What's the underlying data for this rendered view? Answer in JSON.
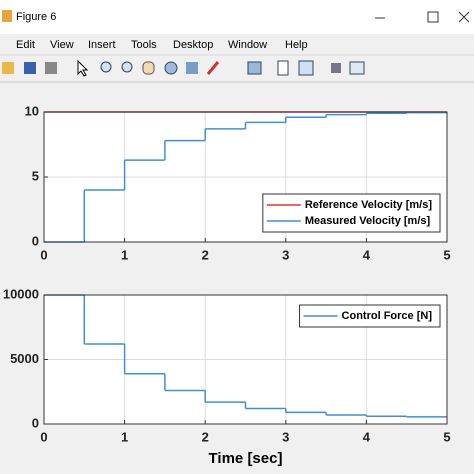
{
  "window": {
    "title": "Figure 6",
    "menu": [
      "Edit",
      "View",
      "Insert",
      "Tools",
      "Desktop",
      "Window",
      "Help"
    ]
  },
  "chart_data": [
    {
      "type": "line",
      "xlim": [
        0,
        5
      ],
      "xticks": [
        0,
        1,
        2,
        3,
        4,
        5
      ],
      "ylim": [
        0,
        10
      ],
      "yticks": [
        0,
        5,
        10
      ],
      "grid": true,
      "legend": "lower right",
      "series": [
        {
          "name": "Reference Velocity [m/s]",
          "color": "#e0333a",
          "step": false,
          "x": [
            0,
            5
          ],
          "values": [
            10,
            10
          ]
        },
        {
          "name": "Measured Velocity [m/s]",
          "color": "#3f8fd2",
          "step": true,
          "x": [
            0,
            0.5,
            1,
            1.5,
            2,
            2.5,
            3,
            3.5,
            4,
            4.5
          ],
          "values": [
            0,
            4,
            6.3,
            7.8,
            8.7,
            9.2,
            9.6,
            9.8,
            9.9,
            9.95
          ]
        }
      ]
    },
    {
      "type": "line",
      "xlabel": "Time [sec]",
      "xlim": [
        0,
        5
      ],
      "xticks": [
        0,
        1,
        2,
        3,
        4,
        5
      ],
      "ylim": [
        0,
        10000
      ],
      "yticks": [
        0,
        5000,
        10000
      ],
      "grid": true,
      "legend": "upper right",
      "series": [
        {
          "name": "Control Force [N]",
          "color": "#3f8fd2",
          "step": true,
          "x": [
            0,
            0.5,
            1,
            1.5,
            2,
            2.5,
            3,
            3.5,
            4,
            4.5
          ],
          "values": [
            10000,
            6200,
            3900,
            2600,
            1700,
            1200,
            900,
            700,
            600,
            550
          ]
        }
      ]
    }
  ]
}
